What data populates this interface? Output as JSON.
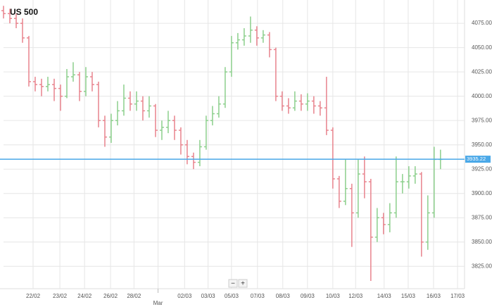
{
  "chart_data": {
    "type": "ohlc",
    "title": "US 500",
    "open": [
      4088,
      4085,
      4080,
      4075,
      4060,
      4015,
      4012,
      4010,
      4012,
      4008,
      4000,
      4020,
      4022,
      4005,
      4020,
      4012,
      3975,
      3958,
      3975,
      3985,
      3998,
      3992,
      3995,
      3985,
      3990,
      3965,
      3968,
      3975,
      3965,
      3950,
      3938,
      3932,
      3948,
      3975,
      3982,
      3992,
      4025,
      4055,
      4058,
      4062,
      4068,
      4060,
      4063,
      4048,
      4000,
      3990,
      3988,
      3995,
      3992,
      3995,
      3990,
      3988,
      3965,
      3915,
      3892,
      3905,
      3880,
      3920,
      3912,
      3855,
      3875,
      3868,
      3880,
      3912,
      3912,
      3918,
      3920,
      3850,
      3880,
      3935
    ],
    "high": [
      4093,
      4090,
      4085,
      4080,
      4062,
      4020,
      4018,
      4020,
      4018,
      4012,
      4028,
      4035,
      4025,
      4030,
      4025,
      4015,
      3980,
      3982,
      3995,
      4012,
      4005,
      4005,
      4000,
      4000,
      3992,
      3975,
      3985,
      3980,
      3968,
      3955,
      3942,
      3955,
      3980,
      3990,
      4000,
      4030,
      4062,
      4065,
      4070,
      4082,
      4072,
      4068,
      4066,
      4050,
      4005,
      3998,
      4005,
      4002,
      4003,
      4000,
      3995,
      4020,
      3968,
      3918,
      3935,
      3910,
      3935,
      3938,
      3915,
      3885,
      3880,
      3890,
      3938,
      3920,
      3928,
      3928,
      3922,
      3898,
      3948,
      3945
    ],
    "low": [
      4080,
      4075,
      4070,
      4055,
      4010,
      4005,
      4000,
      4005,
      3995,
      3985,
      3998,
      4015,
      3995,
      4000,
      4005,
      3968,
      3948,
      3952,
      3970,
      3980,
      3985,
      3985,
      3975,
      3978,
      3958,
      3955,
      3962,
      3955,
      3940,
      3930,
      3925,
      3928,
      3945,
      3970,
      3978,
      3988,
      4020,
      4048,
      4052,
      4055,
      4052,
      4055,
      4040,
      3995,
      3985,
      3982,
      3985,
      3985,
      3985,
      3982,
      3980,
      3960,
      3905,
      3885,
      3888,
      3845,
      3875,
      3895,
      3810,
      3850,
      3858,
      3860,
      3875,
      3900,
      3905,
      3910,
      3835,
      3842,
      3875,
      3925
    ],
    "close": [
      4085,
      4080,
      4075,
      4060,
      4015,
      4012,
      4010,
      4012,
      4008,
      4000,
      4020,
      4022,
      4005,
      4020,
      4012,
      3975,
      3958,
      3975,
      3985,
      3998,
      3992,
      3995,
      3985,
      3990,
      3965,
      3968,
      3975,
      3965,
      3950,
      3938,
      3932,
      3948,
      3975,
      3982,
      3992,
      4025,
      4055,
      4058,
      4062,
      4068,
      4060,
      4063,
      4048,
      4000,
      3990,
      3988,
      3995,
      3992,
      3995,
      3990,
      3988,
      3965,
      3915,
      3892,
      3905,
      3880,
      3920,
      3912,
      3855,
      3875,
      3868,
      3880,
      3912,
      3912,
      3918,
      3920,
      3850,
      3880,
      3935,
      3935
    ],
    "up_color": "#8ccf8c",
    "down_color": "#e8838d",
    "current_price": 3935.22,
    "current_price_color": "#4aa8e8",
    "xlim": [
      0,
      72.8
    ],
    "ylim": [
      3802,
      4099
    ],
    "yticks": [
      {
        "value": 3825,
        "label": "3825.00"
      },
      {
        "value": 3850,
        "label": "3850.00"
      },
      {
        "value": 3875,
        "label": "3875.00"
      },
      {
        "value": 3900,
        "label": "3900.00"
      },
      {
        "value": 3925,
        "label": "3925.00"
      },
      {
        "value": 3950,
        "label": "3950.00"
      },
      {
        "value": 3975,
        "label": "3975.00"
      },
      {
        "value": 4000,
        "label": "4000.00"
      },
      {
        "value": 4025,
        "label": "4025.00"
      },
      {
        "value": 4050,
        "label": "4050.00"
      },
      {
        "value": 4075,
        "label": "4075.00"
      }
    ],
    "xticks": [
      {
        "value": 4.67,
        "label": "22/02"
      },
      {
        "value": 8.9,
        "label": "23/02"
      },
      {
        "value": 12.8,
        "label": "24/02"
      },
      {
        "value": 16.9,
        "label": "26/02"
      },
      {
        "value": 20.6,
        "label": "28/02"
      },
      {
        "value": 28.6,
        "label": "02/03"
      },
      {
        "value": 32.3,
        "label": "03/03"
      },
      {
        "value": 36,
        "label": "05/03"
      },
      {
        "value": 40.1,
        "label": "07/03"
      },
      {
        "value": 44.1,
        "label": "08/03"
      },
      {
        "value": 48,
        "label": "09/03"
      },
      {
        "value": 52,
        "label": "10/03"
      },
      {
        "value": 55.6,
        "label": "12/03"
      },
      {
        "value": 60.1,
        "label": "14/03"
      },
      {
        "value": 63.9,
        "label": "15/03"
      },
      {
        "value": 67.9,
        "label": "16/03"
      },
      {
        "value": 71.7,
        "label": "17/03"
      }
    ],
    "month_ticks": [
      {
        "value": 24.4,
        "label": "Mar"
      }
    ],
    "grid": true,
    "zoom_controls": [
      "−",
      "+"
    ]
  }
}
